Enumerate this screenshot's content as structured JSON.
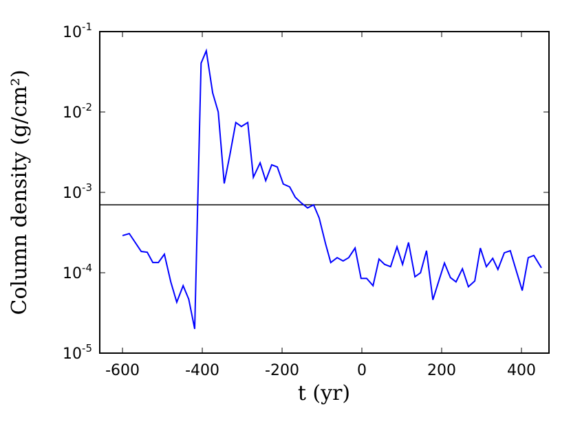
{
  "chart_data": {
    "type": "line",
    "x_label": "t (yr)",
    "y_label": "Column density (g/cm²)",
    "x": [
      -600,
      -583,
      -553,
      -538,
      -524,
      -510,
      -495,
      -479,
      -464,
      -448,
      -434,
      -419,
      -403,
      -390,
      -374,
      -360,
      -345,
      -331,
      -316,
      -302,
      -286,
      -272,
      -255,
      -241,
      -226,
      -212,
      -197,
      -181,
      -167,
      -152,
      -136,
      -121,
      -107,
      -91,
      -78,
      -62,
      -47,
      -33,
      -17,
      -2,
      12,
      28,
      43,
      57,
      72,
      88,
      102,
      117,
      133,
      147,
      162,
      178,
      191,
      207,
      222,
      236,
      252,
      267,
      283,
      297,
      312,
      328,
      341,
      357,
      372,
      386,
      402,
      417,
      431,
      450
    ],
    "series": [
      {
        "color": "#0000ff",
        "values": [
          0.00029,
          0.000307,
          0.000184,
          0.00018,
          0.000134,
          0.000134,
          0.00017,
          7.7e-05,
          4.3e-05,
          6.9e-05,
          4.7e-05,
          2e-05,
          0.0405,
          0.0577,
          0.0173,
          0.01,
          0.00129,
          0.0029,
          0.0074,
          0.0066,
          0.0074,
          0.00154,
          0.00233,
          0.0014,
          0.0022,
          0.00207,
          0.00127,
          0.00117,
          0.00087,
          0.00074,
          0.00064,
          0.0007,
          0.00048,
          0.000229,
          0.000134,
          0.000154,
          0.00014,
          0.000154,
          0.000203,
          8.5e-05,
          8.5e-05,
          6.9e-05,
          0.000148,
          0.000127,
          0.000119,
          0.00021,
          0.000127,
          0.000238,
          8.9e-05,
          0.0001,
          0.000188,
          4.6e-05,
          7.4e-05,
          0.000132,
          8.7e-05,
          7.7e-05,
          0.000112,
          6.7e-05,
          7.9e-05,
          0.000203,
          0.000119,
          0.000151,
          0.00011,
          0.000177,
          0.000188,
          0.00011,
          6e-05,
          0.000154,
          0.000164,
          0.000115
        ]
      }
    ],
    "hline": 0.0007,
    "hline_color": "#000000",
    "yscale": "log",
    "xlim": [
      -657,
      469
    ],
    "xticks": [
      -600,
      -400,
      -200,
      0,
      200,
      400
    ],
    "ylim": [
      1e-05,
      0.1
    ],
    "yticks": [
      {
        "value": 1e-05,
        "label": "10^-5"
      },
      {
        "value": 0.0001,
        "label": "10^-4"
      },
      {
        "value": 0.001,
        "label": "10^-3"
      },
      {
        "value": 0.01,
        "label": "10^-2"
      },
      {
        "value": 0.1,
        "label": "10^-1"
      }
    ]
  }
}
